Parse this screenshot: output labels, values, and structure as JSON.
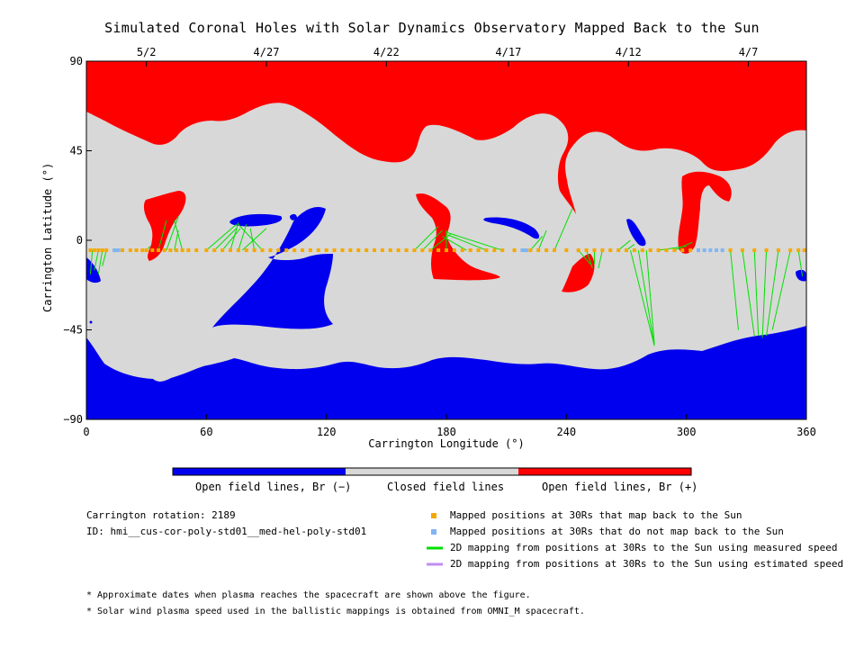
{
  "title": "Simulated Coronal Holes with Solar Dynamics Observatory Mapped Back to the Sun",
  "chart_data": {
    "type": "heatmap",
    "title": "Simulated Coronal Holes with Solar Dynamics Observatory Mapped Back to the Sun",
    "xlabel": "Carrington Longitude (°)",
    "ylabel": "Carrington Latitude (°)",
    "xlim": [
      0,
      360
    ],
    "ylim": [
      -90,
      90
    ],
    "x_ticks": [
      "0",
      "60",
      "120",
      "180",
      "240",
      "300",
      "360"
    ],
    "y_ticks": [
      "90",
      "45",
      "0",
      "−45",
      "−90"
    ],
    "top_date_ticks": [
      {
        "label": "5/2",
        "lon": 30
      },
      {
        "label": "4/27",
        "lon": 90
      },
      {
        "label": "4/22",
        "lon": 150
      },
      {
        "label": "4/17",
        "lon": 211
      },
      {
        "label": "4/12",
        "lon": 271
      },
      {
        "label": "4/7",
        "lon": 331
      }
    ],
    "colorbar": [
      {
        "label": "Open field lines, Br (−)",
        "color": "#0000ee"
      },
      {
        "label": "Closed field lines",
        "color": "#d8d8d8"
      },
      {
        "label": "Open field lines, Br (+)",
        "color": "#ff0000"
      }
    ],
    "legend": [
      {
        "label": "Mapped positions at 30Rs that map back to the Sun",
        "color": "#f5a800",
        "marker": "square"
      },
      {
        "label": "Mapped positions at 30Rs that do not map back to the Sun",
        "color": "#7fb6f2",
        "marker": "square"
      },
      {
        "label": "2D mapping from positions at 30Rs to the Sun using measured speed",
        "color": "#00e000",
        "marker": "line"
      },
      {
        "label": "2D mapping from positions at 30Rs to the Sun using estimated speed",
        "color": "#c08ef0",
        "marker": "line"
      }
    ],
    "spacecraft_track_lat": -5,
    "mapped_points_lon": [
      2,
      4,
      6,
      8,
      10,
      14,
      18,
      22,
      25,
      28,
      30,
      33,
      36,
      39,
      42,
      45,
      48,
      51,
      55,
      60,
      64,
      68,
      72,
      76,
      80,
      84,
      88,
      92,
      96,
      100,
      104,
      108,
      112,
      116,
      120,
      124,
      128,
      132,
      136,
      140,
      144,
      148,
      152,
      156,
      160,
      164,
      168,
      172,
      176,
      180,
      184,
      188,
      192,
      196,
      200,
      204,
      208,
      214,
      222,
      226,
      230,
      234,
      240,
      246,
      250,
      254,
      258,
      262,
      266,
      270,
      274,
      278,
      282,
      286,
      290,
      294,
      298,
      302,
      306,
      322,
      328,
      334,
      340,
      346,
      352,
      356,
      359
    ],
    "unmapped_points_lon": [
      14,
      15,
      16,
      218,
      219,
      220,
      306,
      309,
      312,
      315,
      318
    ],
    "mapping_lines_measured": [
      {
        "from": [
          3,
          -5
        ],
        "to": [
          2,
          -17
        ]
      },
      {
        "from": [
          6,
          -5
        ],
        "to": [
          4,
          -15
        ]
      },
      {
        "from": [
          8,
          -5
        ],
        "to": [
          6,
          -17
        ]
      },
      {
        "from": [
          10,
          -5
        ],
        "to": [
          8,
          -13
        ]
      },
      {
        "from": [
          30,
          -5
        ],
        "to": [
          32,
          -3
        ]
      },
      {
        "from": [
          36,
          -5
        ],
        "to": [
          40,
          10
        ]
      },
      {
        "from": [
          40,
          -5
        ],
        "to": [
          46,
          12
        ]
      },
      {
        "from": [
          44,
          -5
        ],
        "to": [
          46,
          5
        ]
      },
      {
        "from": [
          48,
          -5
        ],
        "to": [
          44,
          10
        ]
      },
      {
        "from": [
          60,
          -5
        ],
        "to": [
          75,
          8
        ]
      },
      {
        "from": [
          64,
          -5
        ],
        "to": [
          75,
          6
        ]
      },
      {
        "from": [
          68,
          -5
        ],
        "to": [
          77,
          6
        ]
      },
      {
        "from": [
          72,
          -5
        ],
        "to": [
          76,
          9
        ]
      },
      {
        "from": [
          76,
          -5
        ],
        "to": [
          80,
          8
        ]
      },
      {
        "from": [
          78,
          -5
        ],
        "to": [
          90,
          6
        ]
      },
      {
        "from": [
          84,
          -5
        ],
        "to": [
          82,
          6
        ]
      },
      {
        "from": [
          88,
          -5
        ],
        "to": [
          76,
          8
        ]
      },
      {
        "from": [
          164,
          -5
        ],
        "to": [
          176,
          7
        ]
      },
      {
        "from": [
          168,
          -5
        ],
        "to": [
          178,
          5
        ]
      },
      {
        "from": [
          172,
          -5
        ],
        "to": [
          182,
          3
        ]
      },
      {
        "from": [
          180,
          -5
        ],
        "to": [
          180,
          5
        ]
      },
      {
        "from": [
          190,
          -5
        ],
        "to": [
          178,
          2
        ]
      },
      {
        "from": [
          200,
          -5
        ],
        "to": [
          180,
          3
        ]
      },
      {
        "from": [
          208,
          -5
        ],
        "to": [
          180,
          4
        ]
      },
      {
        "from": [
          222,
          -5
        ],
        "to": [
          228,
          2
        ]
      },
      {
        "from": [
          226,
          -5
        ],
        "to": [
          230,
          5
        ]
      },
      {
        "from": [
          234,
          -5
        ],
        "to": [
          243,
          16
        ]
      },
      {
        "from": [
          246,
          -5
        ],
        "to": [
          252,
          -12
        ]
      },
      {
        "from": [
          250,
          -5
        ],
        "to": [
          253,
          -14
        ]
      },
      {
        "from": [
          254,
          -5
        ],
        "to": [
          254,
          -12
        ]
      },
      {
        "from": [
          258,
          -5
        ],
        "to": [
          256,
          -14
        ]
      },
      {
        "from": [
          266,
          -5
        ],
        "to": [
          272,
          0
        ]
      },
      {
        "from": [
          270,
          -5
        ],
        "to": [
          274,
          -2
        ]
      },
      {
        "from": [
          272,
          -5
        ],
        "to": [
          284,
          -53
        ]
      },
      {
        "from": [
          276,
          -5
        ],
        "to": [
          284,
          -53
        ]
      },
      {
        "from": [
          280,
          -5
        ],
        "to": [
          284,
          -52
        ]
      },
      {
        "from": [
          286,
          -5
        ],
        "to": [
          300,
          -3
        ]
      },
      {
        "from": [
          294,
          -5
        ],
        "to": [
          303,
          -1
        ]
      },
      {
        "from": [
          322,
          -5
        ],
        "to": [
          326,
          -45
        ]
      },
      {
        "from": [
          328,
          -5
        ],
        "to": [
          334,
          -48
        ]
      },
      {
        "from": [
          334,
          -5
        ],
        "to": [
          336,
          -48
        ]
      },
      {
        "from": [
          340,
          -5
        ],
        "to": [
          338,
          -49
        ]
      },
      {
        "from": [
          346,
          -5
        ],
        "to": [
          340,
          -48
        ]
      },
      {
        "from": [
          352,
          -5
        ],
        "to": [
          343,
          -45
        ]
      },
      {
        "from": [
          356,
          -5
        ],
        "to": [
          358,
          -18
        ]
      }
    ],
    "mapping_lines_estimated": []
  },
  "footer": {
    "rotation": "Carrington rotation: 2189",
    "id": "ID: hmi__cus-cor-poly-std01__med-hel-poly-std01",
    "note1": "* Approximate dates when plasma reaches the spacecraft are shown above the figure.",
    "note2": "* Solar wind plasma speed used in the ballistic mappings is obtained from OMNI_M spacecraft."
  }
}
